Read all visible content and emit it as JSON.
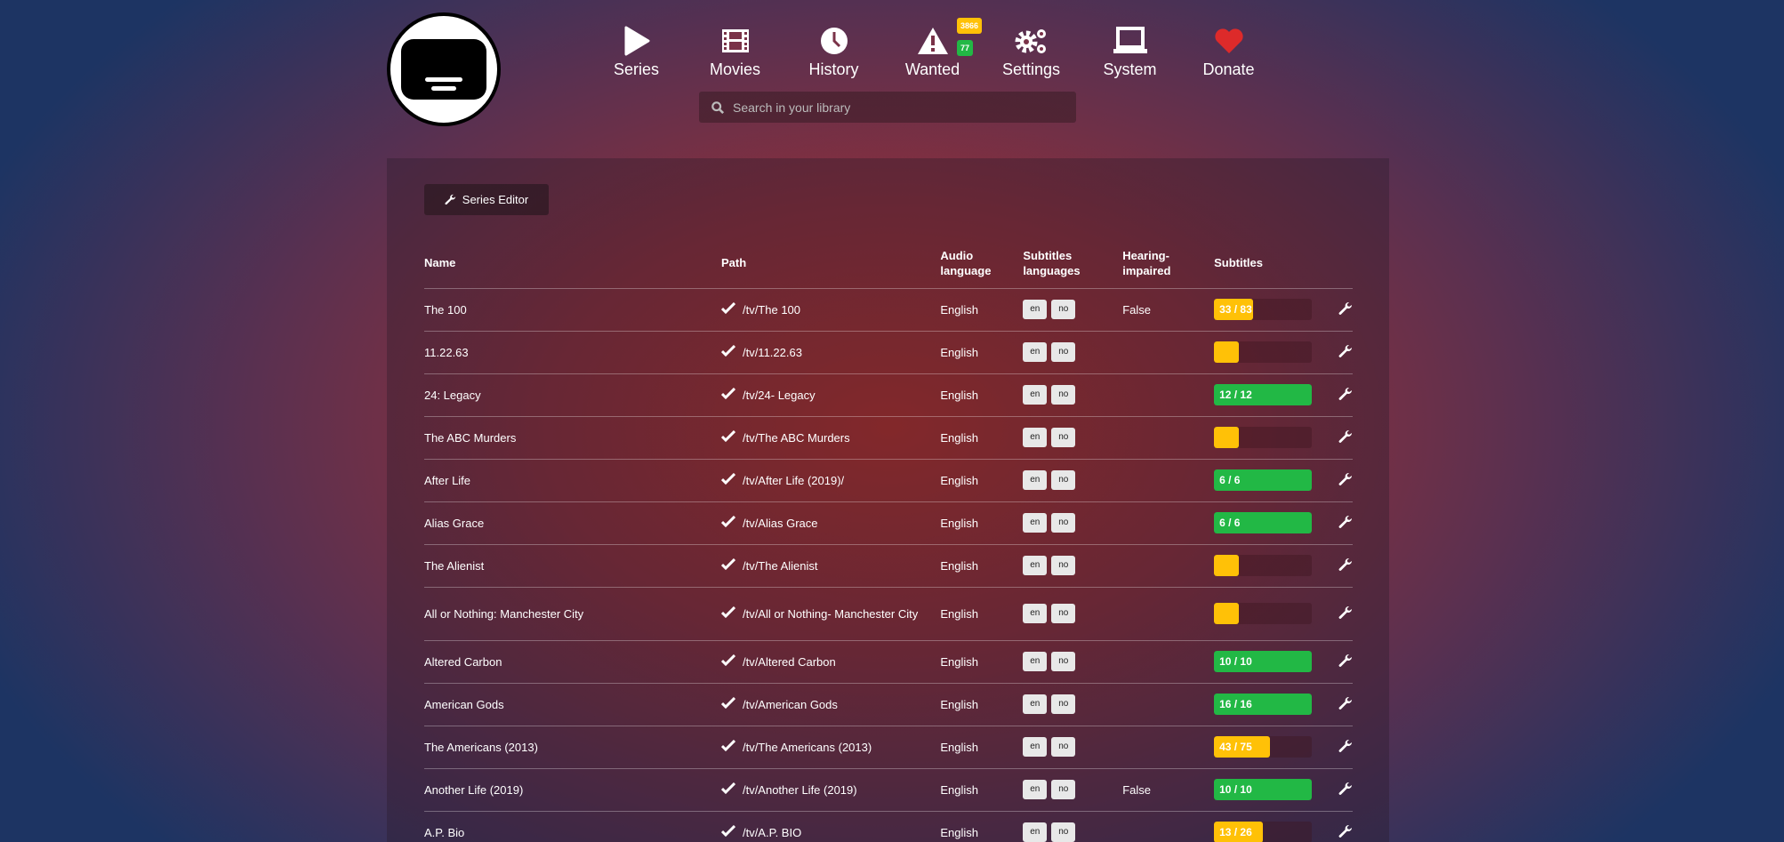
{
  "colors": {
    "warning": "#ffc107",
    "success": "#22b845",
    "danger": "#dd2a2a"
  },
  "nav": [
    {
      "label": "Series",
      "icon": "play-icon"
    },
    {
      "label": "Movies",
      "icon": "film-icon"
    },
    {
      "label": "History",
      "icon": "clock-icon"
    },
    {
      "label": "Wanted",
      "icon": "warning-icon",
      "badges": [
        "3866",
        "77"
      ]
    },
    {
      "label": "Settings",
      "icon": "gears-icon"
    },
    {
      "label": "System",
      "icon": "laptop-icon"
    },
    {
      "label": "Donate",
      "icon": "heart-icon"
    }
  ],
  "search": {
    "placeholder": "Search in your library",
    "value": ""
  },
  "series_editor_label": "Series Editor",
  "headers": [
    "Name",
    "Path",
    "Audio language",
    "Subtitles languages",
    "Hearing-impaired",
    "Subtitles"
  ],
  "rows": [
    {
      "name": "The 100",
      "path": "/tv/The 100",
      "audio": "English",
      "langs": [
        "en",
        "no"
      ],
      "hi": "False",
      "subs": "33 / 83",
      "progress": 0.398
    },
    {
      "name": "11.22.63",
      "path": "/tv/11.22.63",
      "audio": "English",
      "langs": [
        "en",
        "no"
      ],
      "hi": "",
      "subs": "",
      "progress": 0
    },
    {
      "name": "24: Legacy",
      "path": "/tv/24- Legacy",
      "audio": "English",
      "langs": [
        "en",
        "no"
      ],
      "hi": "",
      "subs": "12 / 12",
      "progress": 1
    },
    {
      "name": "The ABC Murders",
      "path": "/tv/The ABC Murders",
      "audio": "English",
      "langs": [
        "en",
        "no"
      ],
      "hi": "",
      "subs": "",
      "progress": 0
    },
    {
      "name": "After Life",
      "path": "/tv/After Life (2019)/",
      "audio": "English",
      "langs": [
        "en",
        "no"
      ],
      "hi": "",
      "subs": "6 / 6",
      "progress": 1
    },
    {
      "name": "Alias Grace",
      "path": "/tv/Alias Grace",
      "audio": "English",
      "langs": [
        "en",
        "no"
      ],
      "hi": "",
      "subs": "6 / 6",
      "progress": 1
    },
    {
      "name": "The Alienist",
      "path": "/tv/The Alienist",
      "audio": "English",
      "langs": [
        "en",
        "no"
      ],
      "hi": "",
      "subs": "",
      "progress": 0
    },
    {
      "name": "All or Nothing: Manchester City",
      "path": "/tv/All or Nothing- Manchester City",
      "audio": "English",
      "langs": [
        "en",
        "no"
      ],
      "hi": "",
      "subs": "",
      "progress": 0
    },
    {
      "name": "Altered Carbon",
      "path": "/tv/Altered Carbon",
      "audio": "English",
      "langs": [
        "en",
        "no"
      ],
      "hi": "",
      "subs": "10 / 10",
      "progress": 1
    },
    {
      "name": "American Gods",
      "path": "/tv/American Gods",
      "audio": "English",
      "langs": [
        "en",
        "no"
      ],
      "hi": "",
      "subs": "16 / 16",
      "progress": 1
    },
    {
      "name": "The Americans (2013)",
      "path": "/tv/The Americans (2013)",
      "audio": "English",
      "langs": [
        "en",
        "no"
      ],
      "hi": "",
      "subs": "43 / 75",
      "progress": 0.573
    },
    {
      "name": "Another Life (2019)",
      "path": "/tv/Another Life (2019)",
      "audio": "English",
      "langs": [
        "en",
        "no"
      ],
      "hi": "False",
      "subs": "10 / 10",
      "progress": 1
    },
    {
      "name": "A.P. Bio",
      "path": "/tv/A.P. BIO",
      "audio": "English",
      "langs": [
        "en",
        "no"
      ],
      "hi": "",
      "subs": "13 / 26",
      "progress": 0.5
    }
  ]
}
